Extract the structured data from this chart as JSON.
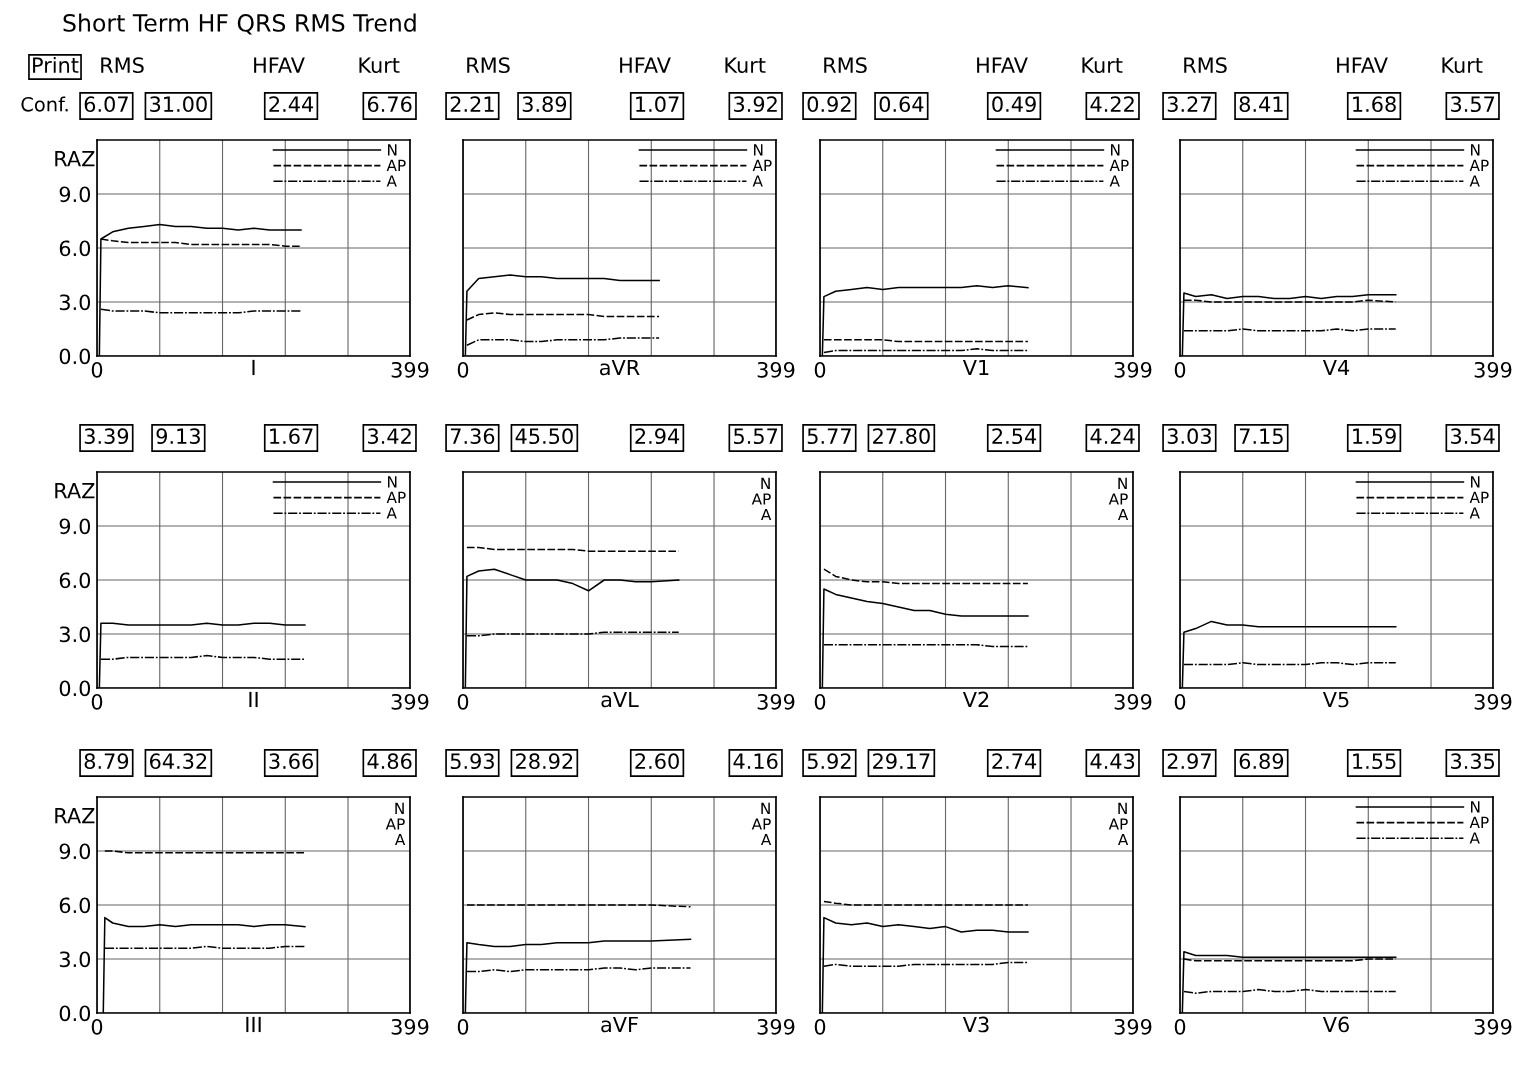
{
  "chart_data": [
    {
      "type": "line",
      "title": "Short Term HF QRS RMS Trend",
      "xlabel": "I",
      "ylabel": "RAZ",
      "annotations": [
        "Print",
        "Conf.",
        "RMS",
        "HFAV",
        "Kurt",
        "6.07",
        "31.00",
        "2.44",
        "6.76"
      ],
      "xlim": [
        0,
        399
      ],
      "ylim": [
        0,
        12
      ],
      "xticks": [
        0,
        {
          "value": 80,
          "label": null
        },
        {
          "value": 160,
          "label": null
        },
        {
          "value": 240,
          "label": null
        },
        {
          "value": 320,
          "label": null
        },
        399
      ],
      "yticks": [
        {
          "value": 0,
          "label": "0.0"
        },
        {
          "value": 3,
          "label": "3.0"
        },
        {
          "value": 6,
          "label": "6.0"
        },
        {
          "value": 9,
          "label": "9.0"
        }
      ],
      "grid": true,
      "legend": "top right",
      "x": [
        3,
        5,
        20,
        40,
        60,
        80,
        100,
        120,
        140,
        160,
        180,
        200,
        220,
        240,
        260
      ],
      "series": [
        {
          "name": "N",
          "color": "#000000",
          "line_style": "solid",
          "values": [
            0,
            6.5,
            6.9,
            7.1,
            7.2,
            7.3,
            7.2,
            7.2,
            7.1,
            7.1,
            7.0,
            7.1,
            7.0,
            7.0,
            7.0
          ]
        },
        {
          "name": "AP",
          "color": "#000000",
          "line_style": "dashed",
          "values": [
            null,
            6.5,
            6.4,
            6.3,
            6.3,
            6.3,
            6.3,
            6.2,
            6.2,
            6.2,
            6.2,
            6.2,
            6.2,
            6.1,
            6.1
          ]
        },
        {
          "name": "A",
          "color": "#000000",
          "line_style": "dashdot",
          "values": [
            null,
            2.6,
            2.5,
            2.5,
            2.5,
            2.4,
            2.4,
            2.4,
            2.4,
            2.4,
            2.4,
            2.5,
            2.5,
            2.5,
            2.5
          ]
        }
      ]
    },
    {
      "type": "line",
      "xlabel": "aVR",
      "annotations": [
        "RMS",
        "HFAV",
        "Kurt",
        "2.21",
        "3.89",
        "1.07",
        "3.92"
      ],
      "tick_labels": "x",
      "xlim": [
        0,
        399
      ],
      "ylim": [
        0,
        12
      ],
      "xticks": [
        0,
        {
          "value": 80,
          "label": null
        },
        {
          "value": 160,
          "label": null
        },
        {
          "value": 240,
          "label": null
        },
        {
          "value": 320,
          "label": null
        },
        399
      ],
      "yticks": [
        {
          "value": 0,
          "label": null
        },
        {
          "value": 3,
          "label": null
        },
        {
          "value": 6,
          "label": null
        },
        {
          "value": 9,
          "label": null
        }
      ],
      "grid": true,
      "legend": "top right",
      "x": [
        3,
        5,
        20,
        40,
        60,
        80,
        100,
        120,
        140,
        160,
        180,
        200,
        220,
        240,
        250
      ],
      "series": [
        {
          "name": "N",
          "color": "#000000",
          "line_style": "solid",
          "values": [
            0,
            3.6,
            4.3,
            4.4,
            4.5,
            4.4,
            4.4,
            4.3,
            4.3,
            4.3,
            4.3,
            4.2,
            4.2,
            4.2,
            4.2
          ]
        },
        {
          "name": "AP",
          "color": "#000000",
          "line_style": "dashed",
          "values": [
            null,
            2.0,
            2.3,
            2.4,
            2.3,
            2.3,
            2.3,
            2.3,
            2.3,
            2.3,
            2.2,
            2.2,
            2.2,
            2.2,
            2.2
          ]
        },
        {
          "name": "A",
          "color": "#000000",
          "line_style": "dashdot",
          "values": [
            null,
            0.6,
            0.9,
            0.9,
            0.9,
            0.8,
            0.8,
            0.9,
            0.9,
            0.9,
            0.9,
            1.0,
            1.0,
            1.0,
            1.0
          ]
        }
      ]
    },
    {
      "type": "line",
      "xlabel": "V1",
      "annotations": [
        "RMS",
        "HFAV",
        "Kurt",
        "0.92",
        "0.64",
        "0.49",
        "4.22"
      ],
      "tick_labels": "x",
      "xlim": [
        0,
        399
      ],
      "ylim": [
        0,
        12
      ],
      "xticks": [
        0,
        {
          "value": 80,
          "label": null
        },
        {
          "value": 160,
          "label": null
        },
        {
          "value": 240,
          "label": null
        },
        {
          "value": 320,
          "label": null
        },
        399
      ],
      "yticks": [
        {
          "value": 0,
          "label": null
        },
        {
          "value": 3,
          "label": null
        },
        {
          "value": 6,
          "label": null
        },
        {
          "value": 9,
          "label": null
        }
      ],
      "grid": true,
      "legend": "top right",
      "x": [
        3,
        5,
        20,
        40,
        60,
        80,
        100,
        120,
        140,
        160,
        180,
        200,
        220,
        240,
        265
      ],
      "series": [
        {
          "name": "N",
          "color": "#000000",
          "line_style": "solid",
          "values": [
            0,
            3.3,
            3.6,
            3.7,
            3.8,
            3.7,
            3.8,
            3.8,
            3.8,
            3.8,
            3.8,
            3.9,
            3.8,
            3.9,
            3.8
          ]
        },
        {
          "name": "AP",
          "color": "#000000",
          "line_style": "dashed",
          "values": [
            null,
            0.9,
            0.9,
            0.9,
            0.9,
            0.9,
            0.8,
            0.8,
            0.8,
            0.8,
            0.8,
            0.8,
            0.8,
            0.8,
            0.8
          ]
        },
        {
          "name": "A",
          "color": "#000000",
          "line_style": "dashdot",
          "values": [
            null,
            0.2,
            0.3,
            0.3,
            0.3,
            0.3,
            0.3,
            0.3,
            0.3,
            0.3,
            0.3,
            0.4,
            0.3,
            0.3,
            0.3
          ]
        }
      ]
    },
    {
      "type": "line",
      "xlabel": "V4",
      "annotations": [
        "RMS",
        "HFAV",
        "Kurt",
        "3.27",
        "8.41",
        "1.68",
        "3.57"
      ],
      "tick_labels": "x",
      "xlim": [
        0,
        399
      ],
      "ylim": [
        0,
        12
      ],
      "xticks": [
        0,
        {
          "value": 80,
          "label": null
        },
        {
          "value": 160,
          "label": null
        },
        {
          "value": 240,
          "label": null
        },
        {
          "value": 320,
          "label": null
        },
        399
      ],
      "yticks": [
        {
          "value": 0,
          "label": null
        },
        {
          "value": 3,
          "label": null
        },
        {
          "value": 6,
          "label": null
        },
        {
          "value": 9,
          "label": null
        }
      ],
      "grid": true,
      "legend": "top right",
      "x": [
        3,
        5,
        20,
        40,
        60,
        80,
        100,
        120,
        140,
        160,
        180,
        200,
        220,
        240,
        275
      ],
      "series": [
        {
          "name": "N",
          "color": "#000000",
          "line_style": "solid",
          "values": [
            0,
            3.5,
            3.3,
            3.4,
            3.2,
            3.3,
            3.3,
            3.2,
            3.2,
            3.3,
            3.2,
            3.3,
            3.3,
            3.4,
            3.4
          ]
        },
        {
          "name": "AP",
          "color": "#000000",
          "line_style": "dashed",
          "values": [
            null,
            3.1,
            3.1,
            3.0,
            3.0,
            3.0,
            3.0,
            3.0,
            3.0,
            3.0,
            3.0,
            3.0,
            3.0,
            3.1,
            3.0
          ]
        },
        {
          "name": "A",
          "color": "#000000",
          "line_style": "dashdot",
          "values": [
            null,
            1.4,
            1.4,
            1.4,
            1.4,
            1.5,
            1.4,
            1.4,
            1.4,
            1.4,
            1.4,
            1.5,
            1.4,
            1.5,
            1.5
          ]
        }
      ]
    },
    {
      "type": "line",
      "xlabel": "II",
      "ylabel": "RAZ",
      "annotations": [
        "3.39",
        "9.13",
        "1.67",
        "3.42"
      ],
      "xlim": [
        0,
        399
      ],
      "ylim": [
        0,
        12
      ],
      "xticks": [
        0,
        {
          "value": 80,
          "label": null
        },
        {
          "value": 160,
          "label": null
        },
        {
          "value": 240,
          "label": null
        },
        {
          "value": 320,
          "label": null
        },
        399
      ],
      "yticks": [
        {
          "value": 0,
          "label": "0.0"
        },
        {
          "value": 3,
          "label": "3.0"
        },
        {
          "value": 6,
          "label": "6.0"
        },
        {
          "value": 9,
          "label": "9.0"
        }
      ],
      "grid": true,
      "legend": "top right",
      "x": [
        3,
        5,
        20,
        40,
        60,
        80,
        100,
        120,
        140,
        160,
        180,
        200,
        220,
        240,
        265
      ],
      "series": [
        {
          "name": "N",
          "color": "#000000",
          "line_style": "solid",
          "values": [
            0,
            3.6,
            3.6,
            3.5,
            3.5,
            3.5,
            3.5,
            3.5,
            3.6,
            3.5,
            3.5,
            3.6,
            3.6,
            3.5,
            3.5
          ]
        },
        {
          "name": "AP",
          "color": "#000000",
          "line_style": "dashed",
          "values": [
            null,
            null,
            null,
            null,
            null,
            null,
            null,
            null,
            null,
            null,
            null,
            null,
            null,
            null,
            null
          ]
        },
        {
          "name": "A",
          "color": "#000000",
          "line_style": "dashdot",
          "values": [
            null,
            1.6,
            1.6,
            1.7,
            1.7,
            1.7,
            1.7,
            1.7,
            1.8,
            1.7,
            1.7,
            1.7,
            1.6,
            1.6,
            1.6
          ]
        }
      ]
    },
    {
      "type": "line",
      "xlabel": "aVL",
      "annotations": [
        {
          "text": "N"
        },
        {
          "text": "AP"
        },
        {
          "text": "A"
        },
        "7.36",
        "45.50",
        "2.94",
        "5.57"
      ],
      "tick_labels": "x",
      "xlim": [
        0,
        399
      ],
      "ylim": [
        0,
        12
      ],
      "xticks": [
        0,
        {
          "value": 80,
          "label": null
        },
        {
          "value": 160,
          "label": null
        },
        {
          "value": 240,
          "label": null
        },
        {
          "value": 320,
          "label": null
        },
        399
      ],
      "yticks": [
        {
          "value": 0,
          "label": null
        },
        {
          "value": 3,
          "label": null
        },
        {
          "value": 6,
          "label": null
        },
        {
          "value": 9,
          "label": null
        }
      ],
      "grid": true,
      "x": [
        3,
        5,
        20,
        40,
        60,
        80,
        100,
        120,
        140,
        160,
        180,
        200,
        220,
        240,
        275
      ],
      "series": [
        {
          "color": "#000000",
          "line_style": "solid",
          "values": [
            0,
            6.2,
            6.5,
            6.6,
            6.3,
            6.0,
            6.0,
            6.0,
            5.8,
            5.4,
            6.0,
            6.0,
            5.9,
            5.9,
            6.0
          ]
        },
        {
          "color": "#000000",
          "line_style": "dashed",
          "values": [
            null,
            7.8,
            7.8,
            7.7,
            7.7,
            7.7,
            7.7,
            7.7,
            7.7,
            7.6,
            7.6,
            7.6,
            7.6,
            7.6,
            7.6
          ]
        },
        {
          "color": "#000000",
          "line_style": "dashdot",
          "values": [
            null,
            2.9,
            2.9,
            3.0,
            3.0,
            3.0,
            3.0,
            3.0,
            3.0,
            3.0,
            3.1,
            3.1,
            3.1,
            3.1,
            3.1
          ]
        }
      ]
    },
    {
      "type": "line",
      "xlabel": "V2",
      "annotations": [
        {
          "text": "N"
        },
        {
          "text": "AP"
        },
        {
          "text": "A"
        },
        "5.77",
        "27.80",
        "2.54",
        "4.24"
      ],
      "tick_labels": "x",
      "xlim": [
        0,
        399
      ],
      "ylim": [
        0,
        12
      ],
      "xticks": [
        0,
        {
          "value": 80,
          "label": null
        },
        {
          "value": 160,
          "label": null
        },
        {
          "value": 240,
          "label": null
        },
        {
          "value": 320,
          "label": null
        },
        399
      ],
      "yticks": [
        {
          "value": 0,
          "label": null
        },
        {
          "value": 3,
          "label": null
        },
        {
          "value": 6,
          "label": null
        },
        {
          "value": 9,
          "label": null
        }
      ],
      "grid": true,
      "x": [
        3,
        5,
        20,
        40,
        60,
        80,
        100,
        120,
        140,
        160,
        180,
        200,
        220,
        240,
        265
      ],
      "series": [
        {
          "color": "#000000",
          "line_style": "solid",
          "values": [
            0,
            5.5,
            5.2,
            5.0,
            4.8,
            4.7,
            4.5,
            4.3,
            4.3,
            4.1,
            4.0,
            4.0,
            4.0,
            4.0,
            4.0
          ]
        },
        {
          "color": "#000000",
          "line_style": "dashed",
          "values": [
            null,
            6.6,
            6.2,
            6.0,
            5.9,
            5.9,
            5.8,
            5.8,
            5.8,
            5.8,
            5.8,
            5.8,
            5.8,
            5.8,
            5.8
          ]
        },
        {
          "color": "#000000",
          "line_style": "dashdot",
          "values": [
            null,
            2.4,
            2.4,
            2.4,
            2.4,
            2.4,
            2.4,
            2.4,
            2.4,
            2.4,
            2.4,
            2.4,
            2.3,
            2.3,
            2.3
          ]
        }
      ]
    },
    {
      "type": "line",
      "xlabel": "V5",
      "annotations": [
        "3.03",
        "7.15",
        "1.59",
        "3.54"
      ],
      "tick_labels": "x",
      "xlim": [
        0,
        399
      ],
      "ylim": [
        0,
        12
      ],
      "xticks": [
        0,
        {
          "value": 80,
          "label": null
        },
        {
          "value": 160,
          "label": null
        },
        {
          "value": 240,
          "label": null
        },
        {
          "value": 320,
          "label": null
        },
        399
      ],
      "yticks": [
        {
          "value": 0,
          "label": null
        },
        {
          "value": 3,
          "label": null
        },
        {
          "value": 6,
          "label": null
        },
        {
          "value": 9,
          "label": null
        }
      ],
      "grid": true,
      "legend": "top right",
      "x": [
        3,
        5,
        20,
        40,
        60,
        80,
        100,
        120,
        140,
        160,
        180,
        200,
        220,
        240,
        275
      ],
      "series": [
        {
          "name": "N",
          "color": "#000000",
          "line_style": "solid",
          "values": [
            0,
            3.1,
            3.3,
            3.7,
            3.5,
            3.5,
            3.4,
            3.4,
            3.4,
            3.4,
            3.4,
            3.4,
            3.4,
            3.4,
            3.4
          ]
        },
        {
          "name": "AP",
          "color": "#000000",
          "line_style": "dashed",
          "values": [
            null,
            null,
            null,
            null,
            null,
            null,
            null,
            null,
            null,
            null,
            null,
            null,
            null,
            null,
            null
          ]
        },
        {
          "name": "A",
          "color": "#000000",
          "line_style": "dashdot",
          "values": [
            null,
            1.3,
            1.3,
            1.3,
            1.3,
            1.4,
            1.3,
            1.3,
            1.3,
            1.3,
            1.4,
            1.4,
            1.3,
            1.4,
            1.4
          ]
        }
      ]
    },
    {
      "type": "line",
      "xlabel": "III",
      "ylabel": "RAZ",
      "annotations": [
        {
          "text": "N"
        },
        {
          "text": "AP"
        },
        {
          "text": "A"
        },
        "8.79",
        "64.32",
        "3.66",
        "4.86"
      ],
      "xlim": [
        0,
        399
      ],
      "ylim": [
        0,
        12
      ],
      "xticks": [
        0,
        {
          "value": 80,
          "label": null
        },
        {
          "value": 160,
          "label": null
        },
        {
          "value": 240,
          "label": null
        },
        {
          "value": 320,
          "label": null
        },
        399
      ],
      "yticks": [
        {
          "value": 0,
          "label": "0.0"
        },
        {
          "value": 3,
          "label": "3.0"
        },
        {
          "value": 6,
          "label": "6.0"
        },
        {
          "value": 9,
          "label": "9.0"
        }
      ],
      "grid": true,
      "x": [
        8,
        10,
        20,
        40,
        60,
        80,
        100,
        120,
        140,
        160,
        180,
        200,
        220,
        240,
        265
      ],
      "series": [
        {
          "color": "#000000",
          "line_style": "solid",
          "values": [
            0,
            5.3,
            5.0,
            4.8,
            4.8,
            4.9,
            4.8,
            4.9,
            4.9,
            4.9,
            4.9,
            4.8,
            4.9,
            4.9,
            4.8
          ]
        },
        {
          "color": "#000000",
          "line_style": "dashed",
          "values": [
            null,
            9.0,
            9.0,
            8.9,
            8.9,
            8.9,
            8.9,
            8.9,
            8.9,
            8.9,
            8.9,
            8.9,
            8.9,
            8.9,
            8.9
          ]
        },
        {
          "color": "#000000",
          "line_style": "dashdot",
          "values": [
            null,
            3.6,
            3.6,
            3.6,
            3.6,
            3.6,
            3.6,
            3.6,
            3.7,
            3.6,
            3.6,
            3.6,
            3.6,
            3.7,
            3.7
          ]
        }
      ]
    },
    {
      "type": "line",
      "xlabel": "aVF",
      "annotations": [
        {
          "text": "N"
        },
        {
          "text": "AP"
        },
        {
          "text": "A"
        },
        "5.93",
        "28.92",
        "2.60",
        "4.16"
      ],
      "tick_labels": "x",
      "xlim": [
        0,
        399
      ],
      "ylim": [
        0,
        12
      ],
      "xticks": [
        0,
        {
          "value": 80,
          "label": null
        },
        {
          "value": 160,
          "label": null
        },
        {
          "value": 240,
          "label": null
        },
        {
          "value": 320,
          "label": null
        },
        399
      ],
      "yticks": [
        {
          "value": 0,
          "label": null
        },
        {
          "value": 3,
          "label": null
        },
        {
          "value": 6,
          "label": null
        },
        {
          "value": 9,
          "label": null
        }
      ],
      "grid": true,
      "x": [
        3,
        5,
        20,
        40,
        60,
        80,
        100,
        120,
        140,
        160,
        180,
        200,
        220,
        240,
        290
      ],
      "series": [
        {
          "color": "#000000",
          "line_style": "solid",
          "values": [
            0,
            3.9,
            3.8,
            3.7,
            3.7,
            3.8,
            3.8,
            3.9,
            3.9,
            3.9,
            4.0,
            4.0,
            4.0,
            4.0,
            4.1
          ]
        },
        {
          "color": "#000000",
          "line_style": "dashed",
          "values": [
            null,
            6.0,
            6.0,
            6.0,
            6.0,
            6.0,
            6.0,
            6.0,
            6.0,
            6.0,
            6.0,
            6.0,
            6.0,
            6.0,
            5.9
          ]
        },
        {
          "color": "#000000",
          "line_style": "dashdot",
          "values": [
            null,
            2.3,
            2.3,
            2.4,
            2.3,
            2.4,
            2.4,
            2.4,
            2.4,
            2.4,
            2.5,
            2.5,
            2.4,
            2.5,
            2.5
          ]
        }
      ]
    },
    {
      "type": "line",
      "xlabel": "V3",
      "annotations": [
        {
          "text": "N"
        },
        {
          "text": "AP"
        },
        {
          "text": "A"
        },
        "5.92",
        "29.17",
        "2.74",
        "4.43"
      ],
      "tick_labels": "x",
      "xlim": [
        0,
        399
      ],
      "ylim": [
        0,
        12
      ],
      "xticks": [
        0,
        {
          "value": 80,
          "label": null
        },
        {
          "value": 160,
          "label": null
        },
        {
          "value": 240,
          "label": null
        },
        {
          "value": 320,
          "label": null
        },
        399
      ],
      "yticks": [
        {
          "value": 0,
          "label": null
        },
        {
          "value": 3,
          "label": null
        },
        {
          "value": 6,
          "label": null
        },
        {
          "value": 9,
          "label": null
        }
      ],
      "grid": true,
      "x": [
        3,
        5,
        20,
        40,
        60,
        80,
        100,
        120,
        140,
        160,
        180,
        200,
        220,
        240,
        265
      ],
      "series": [
        {
          "color": "#000000",
          "line_style": "solid",
          "values": [
            0,
            5.3,
            5.0,
            4.9,
            5.0,
            4.8,
            4.9,
            4.8,
            4.7,
            4.8,
            4.5,
            4.6,
            4.6,
            4.5,
            4.5
          ]
        },
        {
          "color": "#000000",
          "line_style": "dashed",
          "values": [
            null,
            6.2,
            6.1,
            6.0,
            6.0,
            6.0,
            6.0,
            6.0,
            6.0,
            6.0,
            6.0,
            6.0,
            6.0,
            6.0,
            6.0
          ]
        },
        {
          "color": "#000000",
          "line_style": "dashdot",
          "values": [
            null,
            2.6,
            2.7,
            2.6,
            2.6,
            2.6,
            2.6,
            2.7,
            2.7,
            2.7,
            2.7,
            2.7,
            2.7,
            2.8,
            2.8
          ]
        }
      ]
    },
    {
      "type": "line",
      "xlabel": "V6",
      "annotations": [
        "2.97",
        "6.89",
        "1.55",
        "3.35"
      ],
      "tick_labels": "x",
      "xlim": [
        0,
        399
      ],
      "ylim": [
        0,
        12
      ],
      "xticks": [
        0,
        {
          "value": 80,
          "label": null
        },
        {
          "value": 160,
          "label": null
        },
        {
          "value": 240,
          "label": null
        },
        {
          "value": 320,
          "label": null
        },
        399
      ],
      "yticks": [
        {
          "value": 0,
          "label": null
        },
        {
          "value": 3,
          "label": null
        },
        {
          "value": 6,
          "label": null
        },
        {
          "value": 9,
          "label": null
        }
      ],
      "grid": true,
      "legend": "top right",
      "x": [
        3,
        5,
        20,
        40,
        60,
        80,
        100,
        120,
        140,
        160,
        180,
        200,
        220,
        240,
        275
      ],
      "series": [
        {
          "name": "N",
          "color": "#000000",
          "line_style": "solid",
          "values": [
            0,
            3.4,
            3.2,
            3.2,
            3.2,
            3.1,
            3.1,
            3.1,
            3.1,
            3.1,
            3.1,
            3.1,
            3.1,
            3.1,
            3.1
          ]
        },
        {
          "name": "AP",
          "color": "#000000",
          "line_style": "dashed",
          "values": [
            null,
            3.0,
            2.9,
            2.9,
            2.9,
            2.9,
            2.9,
            2.9,
            2.9,
            2.9,
            2.9,
            2.9,
            2.9,
            3.0,
            3.0
          ]
        },
        {
          "name": "A",
          "color": "#000000",
          "line_style": "dashdot",
          "values": [
            null,
            1.2,
            1.1,
            1.2,
            1.2,
            1.2,
            1.3,
            1.2,
            1.2,
            1.3,
            1.2,
            1.2,
            1.2,
            1.2,
            1.2
          ]
        }
      ]
    }
  ]
}
